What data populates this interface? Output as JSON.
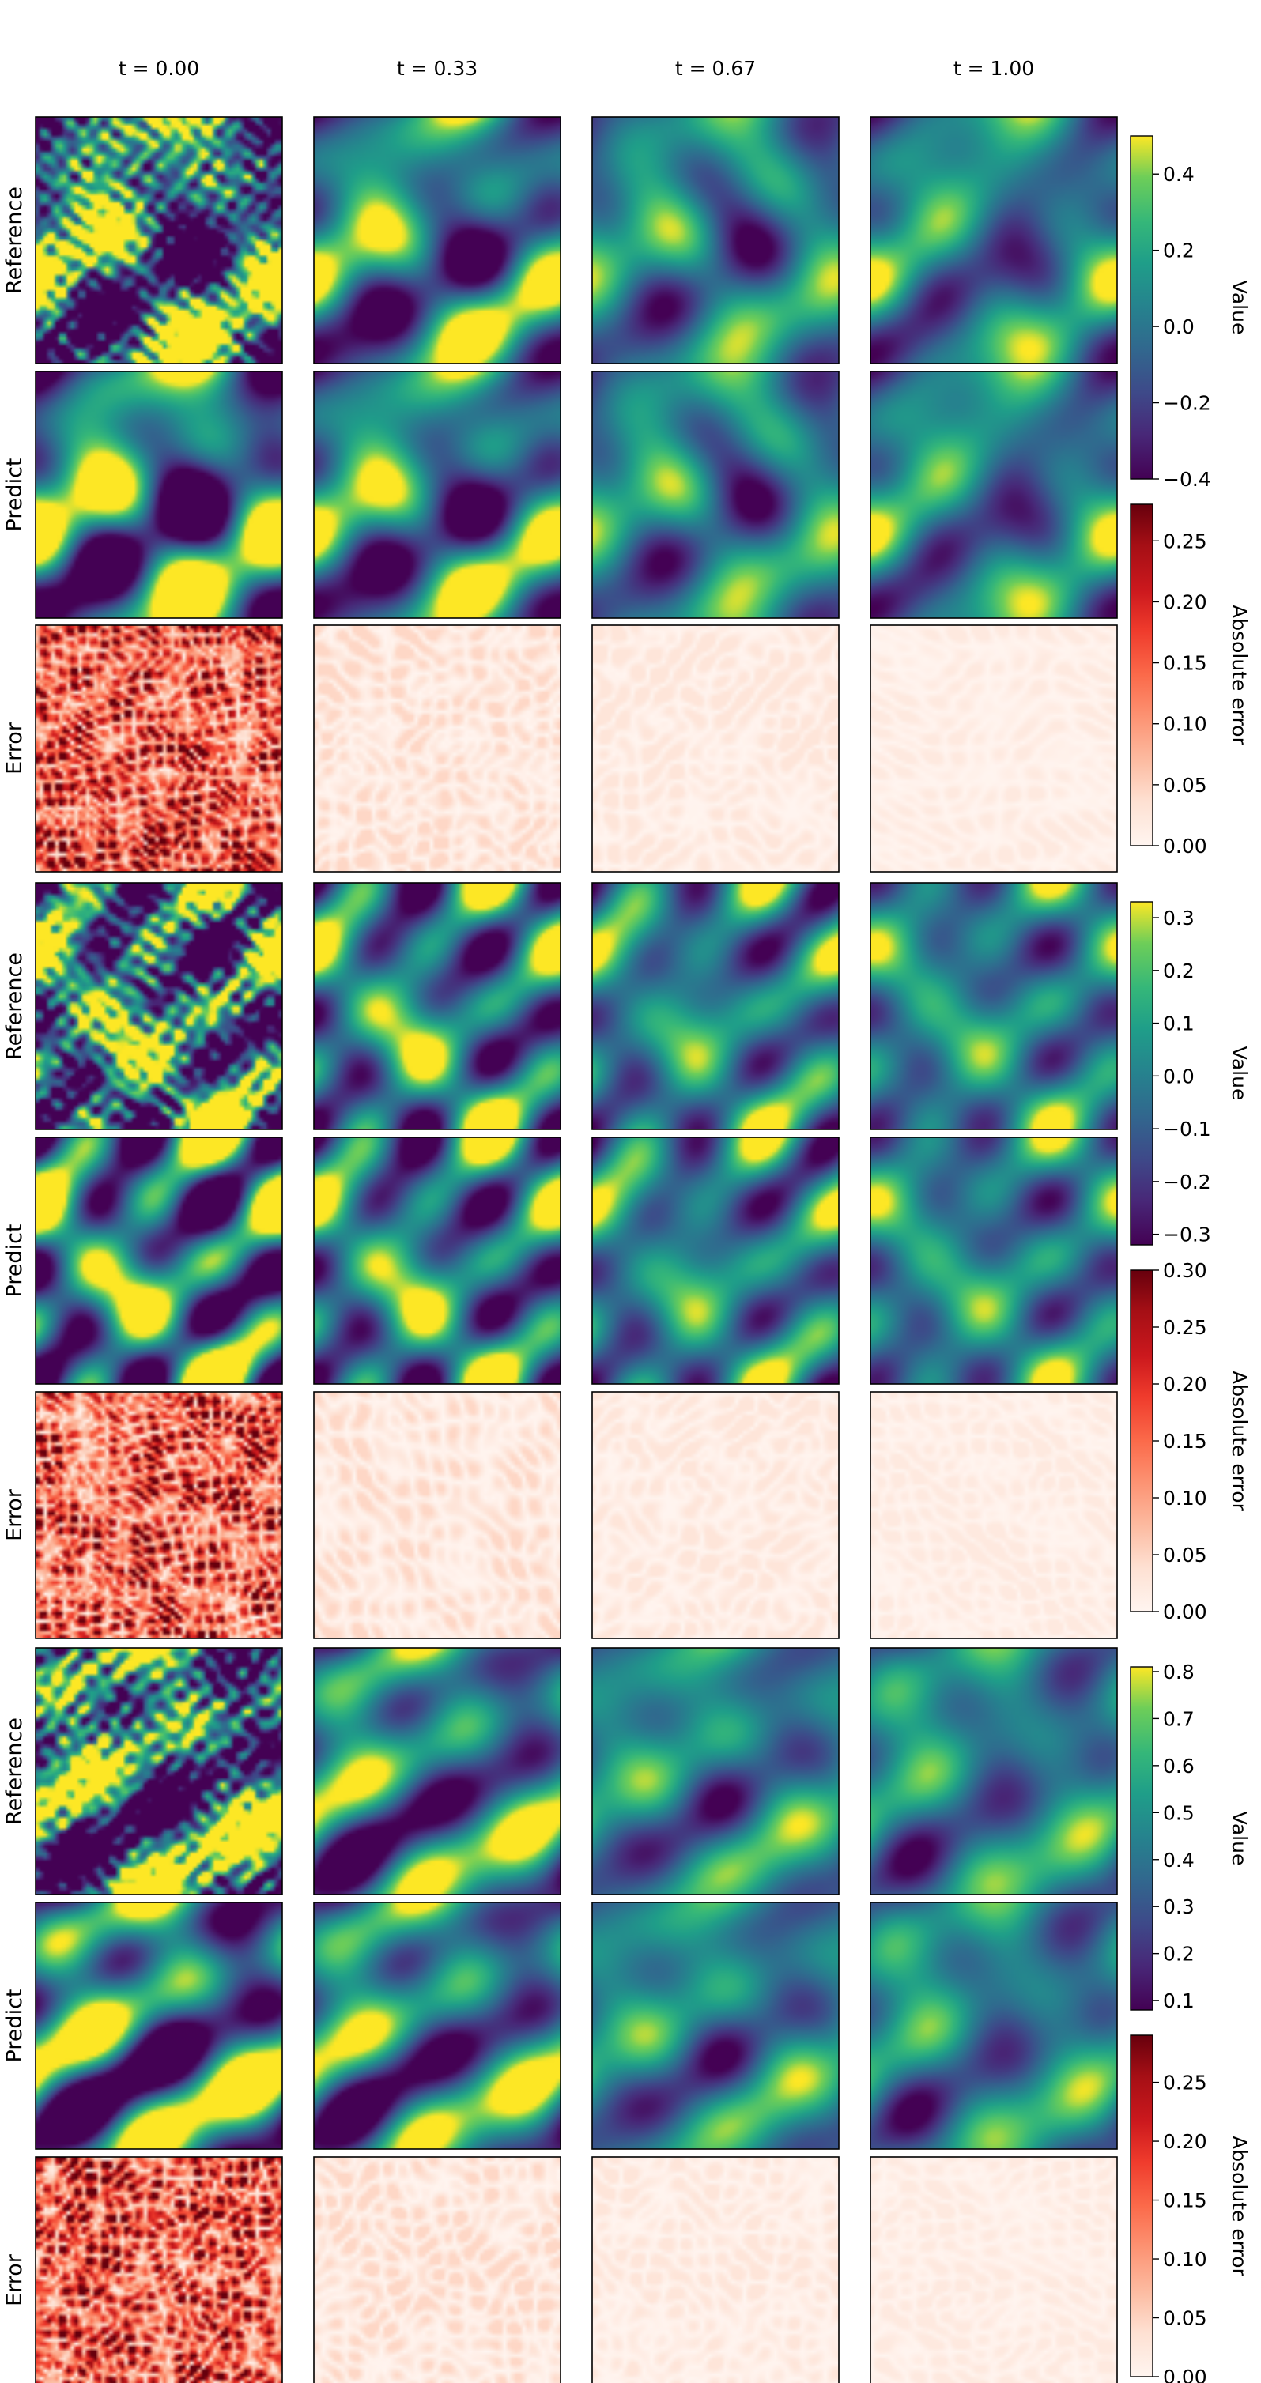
{
  "chart_data": {
    "type": "heatmap",
    "columns": [
      "t = 0.00",
      "t = 0.33",
      "t = 0.67",
      "t = 1.00"
    ],
    "row_labels": [
      "Reference",
      "Predict",
      "Error"
    ],
    "groups": [
      {
        "value_colorbar": {
          "label": "Value",
          "colormap": "viridis",
          "range": [
            -0.4,
            0.5
          ],
          "ticks": [
            -0.4,
            -0.2,
            0.0,
            0.2,
            0.4
          ],
          "tick_labels": [
            "−0.4",
            "−0.2",
            "0.0",
            "0.2",
            "0.4"
          ]
        },
        "error_colorbar": {
          "label": "Absolute error",
          "colormap": "Reds",
          "range": [
            0.0,
            0.28
          ],
          "ticks": [
            0.0,
            0.05,
            0.1,
            0.15,
            0.2,
            0.25
          ],
          "tick_labels": [
            "0.00",
            "0.05",
            "0.10",
            "0.15",
            "0.20",
            "0.25"
          ]
        }
      },
      {
        "value_colorbar": {
          "label": "Value",
          "colormap": "viridis",
          "range": [
            -0.32,
            0.33
          ],
          "ticks": [
            -0.3,
            -0.2,
            -0.1,
            0.0,
            0.1,
            0.2,
            0.3
          ],
          "tick_labels": [
            "−0.3",
            "−0.2",
            "−0.1",
            "0.0",
            "0.1",
            "0.2",
            "0.3"
          ]
        },
        "error_colorbar": {
          "label": "Absolute error",
          "colormap": "Reds",
          "range": [
            0.0,
            0.3
          ],
          "ticks": [
            0.0,
            0.05,
            0.1,
            0.15,
            0.2,
            0.25,
            0.3
          ],
          "tick_labels": [
            "0.00",
            "0.05",
            "0.10",
            "0.15",
            "0.20",
            "0.25",
            "0.30"
          ]
        }
      },
      {
        "value_colorbar": {
          "label": "Value",
          "colormap": "viridis",
          "range": [
            0.08,
            0.81
          ],
          "ticks": [
            0.1,
            0.2,
            0.3,
            0.4,
            0.5,
            0.6,
            0.7,
            0.8
          ],
          "tick_labels": [
            "0.1",
            "0.2",
            "0.3",
            "0.4",
            "0.5",
            "0.6",
            "0.7",
            "0.8"
          ]
        },
        "error_colorbar": {
          "label": "Absolute error",
          "colormap": "Reds",
          "range": [
            0.0,
            0.29
          ],
          "ticks": [
            0.0,
            0.05,
            0.1,
            0.15,
            0.2,
            0.25
          ],
          "tick_labels": [
            "0.00",
            "0.05",
            "0.10",
            "0.15",
            "0.20",
            "0.25"
          ]
        }
      }
    ]
  }
}
